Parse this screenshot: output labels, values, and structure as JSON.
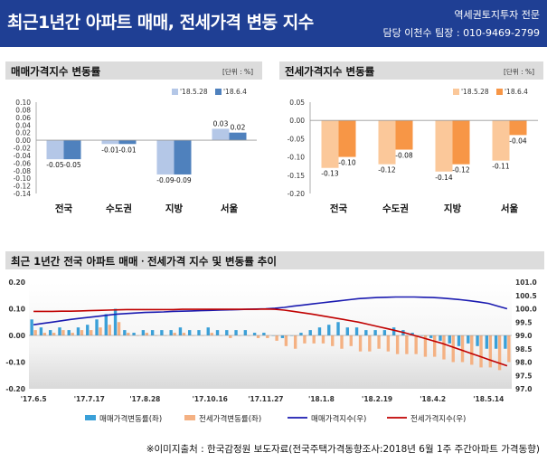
{
  "header": {
    "title": "최근1년간 아파트 매매, 전세가격 변동 지수",
    "subtitle_line1": "역세권토지투자 전문",
    "subtitle_line2": "담당 이천수 팀장 : 010-9469-2799"
  },
  "footer": {
    "source": "※이미지출처 : 한국감정원 보도자료(전국주택가격동향조사:2018년 6월 1주 주간아파트 가격동향)"
  },
  "colors": {
    "header_bg": "#1f3f94",
    "sale_light": "#b4c7e7",
    "sale_dark": "#4f81bd",
    "jeonse_light": "#fbc89a",
    "jeonse_dark": "#f79646",
    "index_sale_line": "#1a1ab0",
    "index_jeonse_line": "#c00000",
    "bar_sale": "#3aa0d8",
    "bar_jeonse": "#f4b183"
  },
  "chart_data": [
    {
      "type": "bar",
      "title": "매매가격지수 변동률",
      "unit_label": "[단위 : %]",
      "categories": [
        "전국",
        "수도권",
        "지방",
        "서울"
      ],
      "series": [
        {
          "name": "'18.5.28",
          "values": [
            -0.05,
            -0.01,
            -0.09,
            0.03
          ]
        },
        {
          "name": "'18.6.4",
          "values": [
            -0.05,
            -0.01,
            -0.09,
            0.02
          ]
        }
      ],
      "data_labels": [
        [
          "-0.05",
          "-0.01",
          "-0.09",
          "0.03"
        ],
        [
          "-0.05",
          "-0.01",
          "-0.09",
          "0.02"
        ]
      ],
      "ylim": [
        -0.14,
        0.1
      ],
      "yticks": [
        "0.10",
        "0.08",
        "0.06",
        "0.04",
        "0.02",
        "0.00",
        "-0.02",
        "-0.04",
        "-0.06",
        "-0.08",
        "-0.10",
        "-0.12",
        "-0.14"
      ],
      "legend_position": "top-right",
      "grid": false
    },
    {
      "type": "bar",
      "title": "전세가격지수 변동률",
      "unit_label": "[단위 : %]",
      "categories": [
        "전국",
        "수도권",
        "지방",
        "서울"
      ],
      "series": [
        {
          "name": "'18.5.28",
          "values": [
            -0.13,
            -0.12,
            -0.14,
            -0.11
          ]
        },
        {
          "name": "'18.6.4",
          "values": [
            -0.1,
            -0.08,
            -0.12,
            -0.04
          ]
        }
      ],
      "data_labels": [
        [
          "-0.13",
          "-0.12",
          "-0.14",
          "-0.11"
        ],
        [
          "-0.10",
          "-0.08",
          "-0.12",
          "-0.04"
        ]
      ],
      "ylim": [
        -0.2,
        0.05
      ],
      "yticks": [
        "0.05",
        "0.00",
        "-0.05",
        "-0.10",
        "-0.15",
        "-0.20"
      ],
      "legend_position": "top-right",
      "grid": false
    },
    {
      "type": "bar+line",
      "title": "최근 1년간 전국 아파트 매매ㆍ전세가격 지수 및 변동률 추이",
      "x_tick_labels": [
        "'17.6.5",
        "'17.7.17",
        "'17.8.28",
        "'17.10.16",
        "'17.11.27",
        "'18.1.8",
        "'18.2.19",
        "'18.4.2",
        "'18.5.14"
      ],
      "x_tick_indices": [
        0,
        6,
        12,
        19,
        25,
        31,
        37,
        43,
        49
      ],
      "y_left_ticks": [
        "0.20",
        "0.10",
        "0.00",
        "-0.10",
        "-0.20"
      ],
      "y_left_lim": [
        -0.2,
        0.2
      ],
      "y_right_ticks": [
        "101.0",
        "100.5",
        "100.0",
        "99.5",
        "99.0",
        "98.5",
        "98.0",
        "97.5",
        "97.0"
      ],
      "y_right_lim": [
        97.0,
        101.0
      ],
      "series": [
        {
          "name": "매매가격변동률(좌)",
          "axis": "left",
          "kind": "bar",
          "values": [
            0.06,
            0.03,
            0.02,
            0.03,
            0.02,
            0.03,
            0.04,
            0.06,
            0.08,
            0.1,
            0.02,
            0.01,
            0.02,
            0.02,
            0.02,
            0.02,
            0.03,
            0.02,
            0.02,
            0.03,
            0.02,
            0.02,
            0.02,
            0.02,
            0.01,
            0.01,
            0.0,
            -0.01,
            0.0,
            0.01,
            0.02,
            0.03,
            0.04,
            0.05,
            0.03,
            0.03,
            0.02,
            0.02,
            0.02,
            0.03,
            0.02,
            0.01,
            0.0,
            -0.01,
            -0.02,
            -0.03,
            -0.04,
            -0.03,
            -0.04,
            -0.05,
            -0.05,
            -0.05
          ]
        },
        {
          "name": "전세가격변동률(좌)",
          "axis": "left",
          "kind": "bar",
          "values": [
            0.02,
            0.01,
            0.01,
            0.02,
            0.01,
            0.02,
            0.02,
            0.03,
            0.04,
            0.05,
            0.01,
            0.0,
            0.01,
            0.0,
            0.0,
            0.01,
            0.01,
            0.0,
            0.0,
            0.01,
            0.0,
            -0.01,
            0.0,
            0.0,
            -0.01,
            -0.01,
            -0.02,
            -0.04,
            -0.05,
            -0.03,
            -0.03,
            -0.03,
            -0.04,
            -0.05,
            -0.04,
            -0.06,
            -0.06,
            -0.05,
            -0.06,
            -0.07,
            -0.07,
            -0.07,
            -0.08,
            -0.08,
            -0.09,
            -0.1,
            -0.1,
            -0.11,
            -0.12,
            -0.12,
            -0.13,
            -0.1
          ]
        },
        {
          "name": "매매가격지수(우)",
          "axis": "right",
          "kind": "line",
          "values": [
            99.4,
            99.45,
            99.5,
            99.55,
            99.6,
            99.64,
            99.68,
            99.72,
            99.76,
            99.8,
            99.82,
            99.84,
            99.86,
            99.87,
            99.88,
            99.9,
            99.91,
            99.92,
            99.93,
            99.94,
            99.95,
            99.96,
            99.97,
            99.98,
            99.99,
            100.0,
            100.02,
            100.05,
            100.1,
            100.14,
            100.18,
            100.22,
            100.26,
            100.3,
            100.34,
            100.38,
            100.4,
            100.42,
            100.43,
            100.44,
            100.44,
            100.44,
            100.43,
            100.42,
            100.4,
            100.37,
            100.34,
            100.3,
            100.25,
            100.2,
            100.1,
            100.0
          ]
        },
        {
          "name": "전세가격지수(우)",
          "axis": "right",
          "kind": "line",
          "values": [
            99.9,
            99.9,
            99.9,
            99.91,
            99.91,
            99.92,
            99.93,
            99.94,
            99.95,
            99.96,
            99.97,
            99.97,
            99.97,
            99.97,
            99.97,
            99.97,
            99.98,
            99.98,
            99.98,
            99.98,
            99.98,
            99.98,
            99.98,
            99.98,
            99.98,
            99.99,
            99.98,
            99.95,
            99.9,
            99.85,
            99.8,
            99.74,
            99.68,
            99.62,
            99.56,
            99.5,
            99.42,
            99.34,
            99.26,
            99.18,
            99.1,
            99.0,
            98.9,
            98.8,
            98.7,
            98.58,
            98.46,
            98.34,
            98.22,
            98.1,
            97.98,
            97.86
          ]
        }
      ],
      "legend_position": "bottom",
      "grid": false
    }
  ]
}
